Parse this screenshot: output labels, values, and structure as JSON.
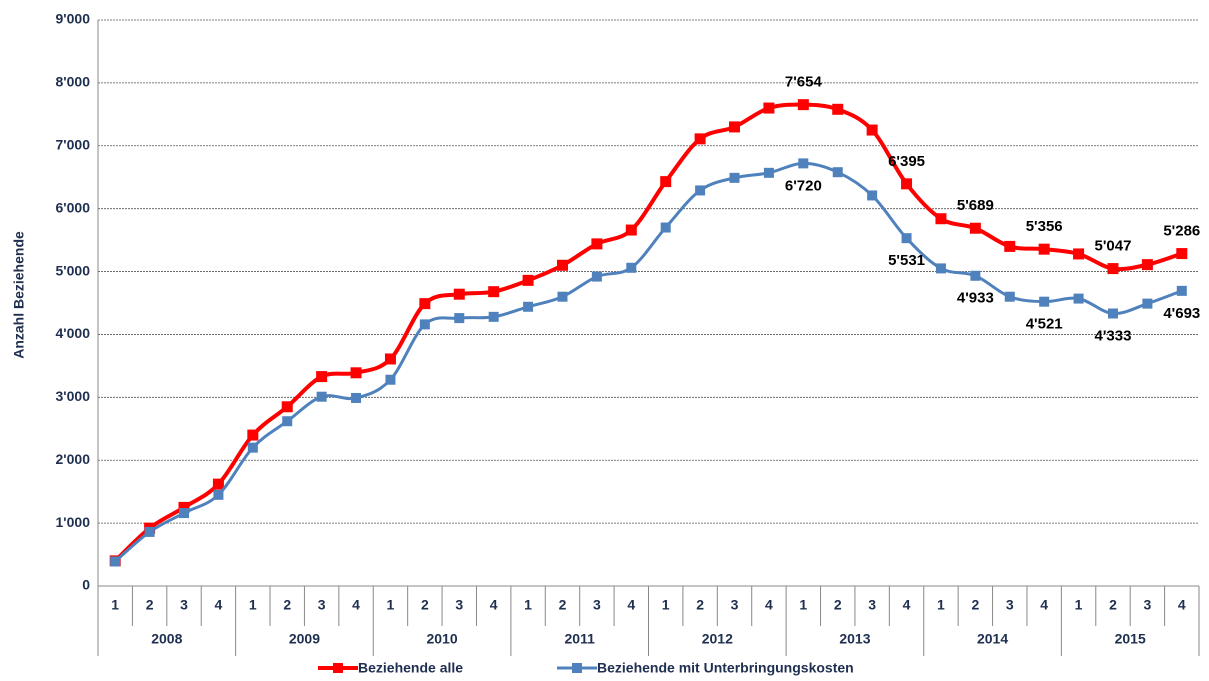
{
  "chart_data": {
    "type": "line",
    "y_label": "Anzahl Beziehende",
    "categories": [
      "1",
      "2",
      "3",
      "4",
      "1",
      "2",
      "3",
      "4",
      "1",
      "2",
      "3",
      "4",
      "1",
      "2",
      "3",
      "4",
      "1",
      "2",
      "3",
      "4",
      "1",
      "2",
      "3",
      "4",
      "1",
      "2",
      "3",
      "4",
      "1",
      "2",
      "3",
      "4"
    ],
    "years": [
      "2008",
      "2009",
      "2010",
      "2011",
      "2012",
      "2013",
      "2014",
      "2015"
    ],
    "ylim": [
      0,
      9000
    ],
    "yticks": [
      0,
      {
        "value": 1000,
        "label": "1'000"
      },
      {
        "value": 2000,
        "label": "2'000"
      },
      {
        "value": 3000,
        "label": "3'000"
      },
      {
        "value": 4000,
        "label": "4'000"
      },
      {
        "value": 5000,
        "label": "5'000"
      },
      {
        "value": 6000,
        "label": "6'000"
      },
      {
        "value": 7000,
        "label": "7'000"
      },
      {
        "value": 8000,
        "label": "8'000"
      },
      {
        "value": 9000,
        "label": "9'000"
      }
    ],
    "grid": true,
    "legend": "bottom",
    "series": [
      {
        "name": "Beziehende alle",
        "color": "#ff0000",
        "values": [
          400,
          920,
          1250,
          1620,
          2400,
          2850,
          3330,
          3390,
          3610,
          4490,
          4640,
          4680,
          4860,
          5100,
          5440,
          5660,
          6430,
          7110,
          7300,
          7600,
          7654,
          7580,
          7250,
          6395,
          5840,
          5689,
          5400,
          5356,
          5280,
          5047,
          5110,
          5286
        ],
        "value_labels": [
          null,
          null,
          null,
          null,
          null,
          null,
          null,
          null,
          null,
          null,
          null,
          null,
          null,
          null,
          null,
          null,
          null,
          null,
          null,
          null,
          "7'654",
          null,
          null,
          "6'395",
          null,
          "5'689",
          null,
          "5'356",
          null,
          "5'047",
          null,
          "5'286"
        ]
      },
      {
        "name": "Beziehende mit Unterbringungskosten",
        "color": "#4f81bd",
        "values": [
          390,
          860,
          1160,
          1450,
          2200,
          2620,
          3010,
          2990,
          3280,
          4160,
          4260,
          4280,
          4440,
          4600,
          4920,
          5060,
          5700,
          6290,
          6490,
          6570,
          6720,
          6580,
          6210,
          5531,
          5050,
          4933,
          4600,
          4521,
          4570,
          4333,
          4490,
          4693
        ],
        "value_labels": [
          null,
          null,
          null,
          null,
          null,
          null,
          null,
          null,
          null,
          null,
          null,
          null,
          null,
          null,
          null,
          null,
          null,
          null,
          null,
          null,
          "6'720",
          null,
          null,
          "5'531",
          null,
          "4'933",
          null,
          "4'521",
          null,
          "4'333",
          null,
          "4'693"
        ]
      }
    ]
  }
}
